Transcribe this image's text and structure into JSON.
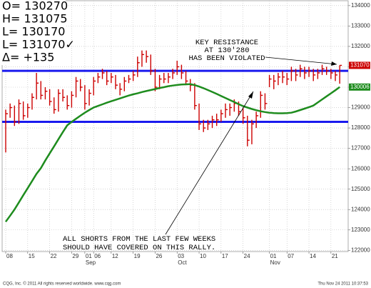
{
  "chart_data": {
    "type": "ohlc",
    "categories": [
      "08",
      null,
      null,
      null,
      null,
      "15",
      null,
      null,
      null,
      null,
      "22",
      null,
      null,
      null,
      null,
      "29",
      null,
      null,
      "01",
      null,
      "06",
      null,
      null,
      null,
      "12",
      null,
      null,
      null,
      null,
      "19",
      null,
      null,
      null,
      null,
      "26",
      null,
      null,
      null,
      null,
      "03",
      null,
      null,
      null,
      null,
      "10",
      null,
      null,
      null,
      null,
      "17",
      null,
      null,
      null,
      null,
      "24",
      null,
      null,
      null,
      null,
      null,
      "01",
      null,
      null,
      null,
      "07",
      null,
      null,
      null,
      null,
      "14",
      null,
      null,
      null,
      null,
      "21",
      null,
      null
    ],
    "month_labels": [
      {
        "value": 18,
        "label": "Sep"
      },
      {
        "value": 39,
        "label": "Oct"
      },
      {
        "value": 60,
        "label": "Nov"
      }
    ],
    "high": [
      128900,
      129200,
      129100,
      129400,
      129300,
      129200,
      129700,
      130700,
      130300,
      130000,
      129900,
      129500,
      129900,
      129900,
      129600,
      129800,
      130500,
      130400,
      130100,
      129900,
      130500,
      130700,
      130900,
      130800,
      130700,
      130600,
      130200,
      130500,
      130600,
      130800,
      131500,
      131800,
      131800,
      131600,
      130900,
      130600,
      130700,
      130700,
      130900,
      131300,
      131100,
      130800,
      130400,
      130200,
      129200,
      128400,
      128400,
      128600,
      128700,
      128900,
      129200,
      129200,
      129400,
      129300,
      129000,
      128600,
      128400,
      128800,
      129800,
      129700,
      130600,
      130600,
      130700,
      130800,
      130700,
      131000,
      130900,
      131100,
      131000,
      131000,
      130900,
      130900,
      131100,
      131000,
      130900,
      130800,
      131075
    ],
    "low": [
      126800,
      128500,
      128100,
      128200,
      128400,
      128500,
      128900,
      129400,
      129400,
      129400,
      129100,
      128700,
      128800,
      129300,
      128900,
      129000,
      129500,
      129800,
      128900,
      129100,
      129600,
      130200,
      130400,
      130100,
      130200,
      129900,
      129600,
      129800,
      130200,
      130300,
      130500,
      131000,
      131200,
      130600,
      129800,
      129900,
      130200,
      130200,
      130400,
      130600,
      130400,
      130100,
      129800,
      128900,
      127900,
      127800,
      127900,
      128000,
      128100,
      128300,
      128500,
      128600,
      128800,
      128600,
      128200,
      127100,
      127200,
      128000,
      128500,
      128900,
      130000,
      129900,
      130100,
      130200,
      130100,
      130300,
      130300,
      130500,
      130400,
      130500,
      130300,
      130400,
      130600,
      130600,
      130400,
      130300,
      130170
    ],
    "close": [
      128700,
      129000,
      128300,
      129200,
      128600,
      129000,
      129500,
      130200,
      129600,
      129800,
      129300,
      128900,
      129700,
      129500,
      129100,
      129600,
      130300,
      130000,
      129200,
      129700,
      130300,
      130500,
      130700,
      130300,
      130500,
      130100,
      129900,
      130300,
      130400,
      130600,
      131200,
      131600,
      131500,
      130800,
      130000,
      130400,
      130400,
      130500,
      130700,
      131000,
      130700,
      130300,
      130100,
      129100,
      128200,
      128000,
      128200,
      128400,
      128400,
      128700,
      128900,
      129000,
      129200,
      128800,
      128500,
      127400,
      128200,
      128600,
      129600,
      129200,
      130400,
      130300,
      130500,
      130500,
      130400,
      130800,
      130600,
      130900,
      130700,
      130800,
      130600,
      130700,
      130900,
      130800,
      130700,
      130600,
      131070
    ],
    "bar_color": "#cc0000",
    "moving_average": {
      "color": "#1e8c1e",
      "values": [
        123400,
        123700,
        124000,
        124350,
        124700,
        125050,
        125400,
        125750,
        126030,
        126400,
        126750,
        127100,
        127450,
        127800,
        128130,
        128300,
        128450,
        128600,
        128750,
        128880,
        129000,
        129080,
        129160,
        129240,
        129310,
        129380,
        129450,
        129520,
        129590,
        129650,
        129700,
        129760,
        129810,
        129860,
        129910,
        129960,
        130000,
        130050,
        130080,
        130110,
        130130,
        130140,
        130150,
        130100,
        130030,
        129950,
        129860,
        129770,
        129670,
        129570,
        129470,
        129370,
        129270,
        129170,
        129070,
        129000,
        128930,
        128870,
        128820,
        128780,
        128750,
        128730,
        128720,
        128720,
        128730,
        128750,
        128810,
        128880,
        128950,
        129020,
        129100,
        129250,
        129400,
        129550,
        129700,
        129850,
        130006
      ]
    },
    "levels": {
      "color": "#1a1aee",
      "values": [
        130800,
        128300
      ]
    },
    "ylim": [
      121940,
      134240
    ],
    "yticks": [
      122000,
      123000,
      124000,
      125000,
      126000,
      127000,
      128000,
      129000,
      130000,
      131000,
      132000,
      133000,
      134000
    ],
    "grid": true,
    "info": [
      "O= 130270",
      "H= 131075",
      "L= 130170",
      "L= 131070✓",
      "Δ=      +135"
    ],
    "annotations": [
      {
        "lines": [
          "KEY RESISTANCE",
          "AT 130'280",
          "HAS BEEN VIOLATED"
        ]
      },
      {
        "lines": [
          "ALL SHORTS FROM THE LAST FEW WEEKS",
          "SHOULD HAVE COVERED ON THIS RALLY."
        ]
      }
    ],
    "footer_left": "CQG, Inc. © 2011 All rights reserved worldwide. www.cqg.com",
    "footer_right": "Thu Nov 24 2011 10:37:53"
  }
}
